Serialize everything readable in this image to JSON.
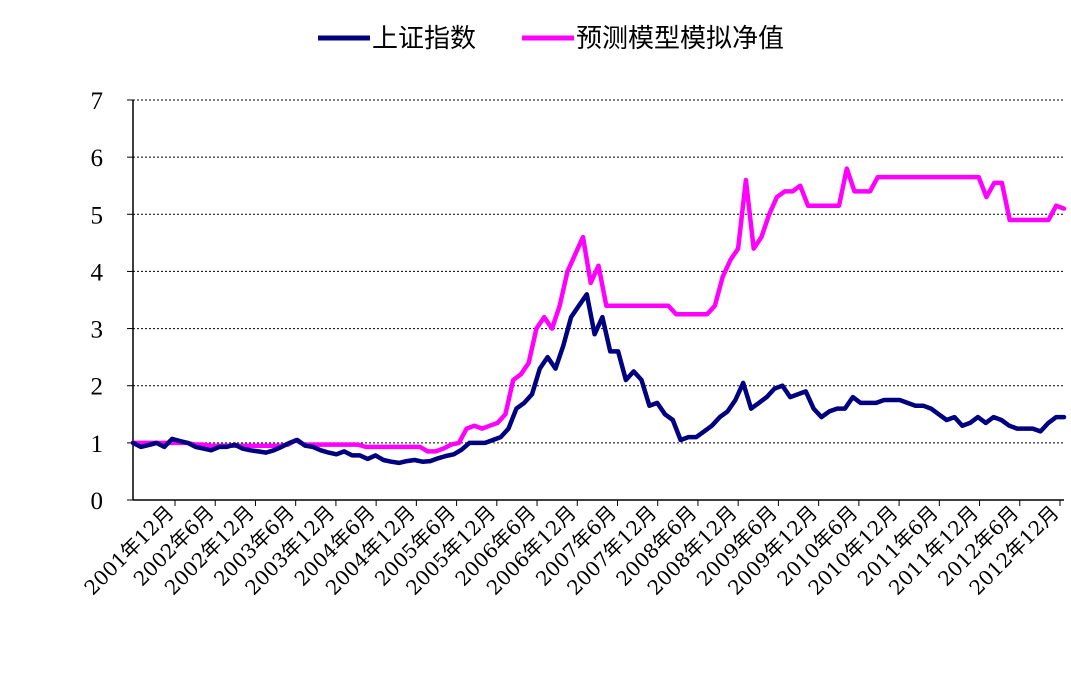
{
  "chart_data": {
    "type": "line",
    "title": "",
    "xlabel": "",
    "ylabel": "",
    "ylim": [
      0,
      7
    ],
    "y_ticks": [
      "0",
      "1",
      "2",
      "3",
      "4",
      "5",
      "6",
      "7"
    ],
    "grid": "horizontal-dotted",
    "legend_position": "top",
    "x_tick_labels": [
      "2001年12月",
      "2002年6月",
      "2002年12月",
      "2003年6月",
      "2003年12月",
      "2004年6月",
      "2004年12月",
      "2005年6月",
      "2005年12月",
      "2006年6月",
      "2006年12月",
      "2007年6月",
      "2007年12月",
      "2008年6月",
      "2008年12月",
      "2009年6月",
      "2009年12月",
      "2010年6月",
      "2010年12月",
      "2011年6月",
      "2011年12月",
      "2012年6月",
      "2012年12月"
    ],
    "series": [
      {
        "name": "上证指数",
        "color": "#000080",
        "values": [
          1.0,
          0.93,
          0.96,
          1.0,
          0.93,
          1.07,
          1.03,
          1.0,
          0.93,
          0.9,
          0.87,
          0.93,
          0.93,
          0.97,
          0.9,
          0.87,
          0.85,
          0.83,
          0.87,
          0.93,
          1.0,
          1.05,
          0.95,
          0.93,
          0.87,
          0.83,
          0.8,
          0.85,
          0.78,
          0.78,
          0.72,
          0.78,
          0.7,
          0.67,
          0.65,
          0.68,
          0.7,
          0.67,
          0.68,
          0.73,
          0.77,
          0.8,
          0.88,
          1.0,
          1.0,
          1.0,
          1.05,
          1.1,
          1.25,
          1.6,
          1.7,
          1.85,
          2.3,
          2.5,
          2.3,
          2.7,
          3.2,
          3.4,
          3.6,
          2.9,
          3.2,
          2.6,
          2.6,
          2.1,
          2.25,
          2.1,
          1.65,
          1.7,
          1.5,
          1.4,
          1.05,
          1.1,
          1.1,
          1.2,
          1.3,
          1.45,
          1.55,
          1.75,
          2.05,
          1.6,
          1.7,
          1.8,
          1.95,
          2.0,
          1.8,
          1.85,
          1.9,
          1.6,
          1.45,
          1.55,
          1.6,
          1.6,
          1.8,
          1.7,
          1.7,
          1.7,
          1.75,
          1.75,
          1.75,
          1.7,
          1.65,
          1.65,
          1.6,
          1.5,
          1.4,
          1.45,
          1.3,
          1.35,
          1.45,
          1.35,
          1.45,
          1.4,
          1.3,
          1.25,
          1.25,
          1.25,
          1.2,
          1.35,
          1.45,
          1.45
        ]
      },
      {
        "name": "预测模型模拟净值",
        "color": "#ff00ff",
        "values": [
          1.0,
          1.0,
          1.0,
          1.0,
          1.0,
          1.0,
          1.0,
          1.0,
          0.97,
          0.97,
          0.95,
          0.95,
          0.95,
          0.95,
          0.95,
          0.95,
          0.95,
          0.95,
          0.95,
          0.95,
          0.97,
          1.05,
          0.97,
          0.97,
          0.97,
          0.97,
          0.97,
          0.97,
          0.97,
          0.97,
          0.93,
          0.93,
          0.93,
          0.93,
          0.93,
          0.93,
          0.93,
          0.93,
          0.85,
          0.85,
          0.9,
          0.97,
          1.0,
          1.25,
          1.3,
          1.25,
          1.3,
          1.35,
          1.5,
          2.1,
          2.2,
          2.4,
          3.0,
          3.2,
          3.0,
          3.4,
          4.0,
          4.3,
          4.6,
          3.8,
          4.1,
          3.4,
          3.4,
          3.4,
          3.4,
          3.4,
          3.4,
          3.4,
          3.4,
          3.4,
          3.25,
          3.25,
          3.25,
          3.25,
          3.25,
          3.4,
          3.9,
          4.2,
          4.4,
          5.6,
          4.4,
          4.6,
          5.0,
          5.3,
          5.4,
          5.4,
          5.5,
          5.15,
          5.15,
          5.15,
          5.15,
          5.15,
          5.8,
          5.4,
          5.4,
          5.4,
          5.65,
          5.65,
          5.65,
          5.65,
          5.65,
          5.65,
          5.65,
          5.65,
          5.65,
          5.65,
          5.65,
          5.65,
          5.65,
          5.65,
          5.3,
          5.55,
          5.55,
          4.9,
          4.9,
          4.9,
          4.9,
          4.9,
          4.9,
          5.15,
          5.1
        ]
      }
    ]
  }
}
